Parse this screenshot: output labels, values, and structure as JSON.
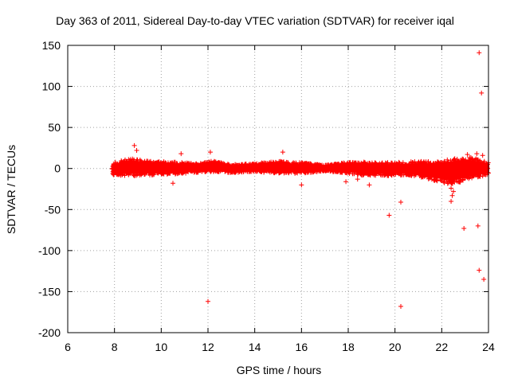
{
  "chart_data": {
    "type": "scatter",
    "title": "Day 363 of 2011, Sidereal Day-to-day VTEC variation (SDTVAR) for receiver iqal",
    "xlabel": "GPS time / hours",
    "ylabel": "SDTVAR / TECUs",
    "xlim": [
      6,
      24
    ],
    "ylim": [
      -200,
      150
    ],
    "xticks": [
      6,
      8,
      10,
      12,
      14,
      16,
      18,
      20,
      22,
      24
    ],
    "yticks": [
      -200,
      -150,
      -100,
      -50,
      0,
      50,
      100,
      150
    ],
    "grid": true,
    "marker": "+",
    "color": "#ff0000",
    "dense_band": {
      "description": "dense band of points around zero",
      "x_start": 7.9,
      "x_end": 24.0,
      "envelope": [
        {
          "x": 7.9,
          "low": -8,
          "high": 8
        },
        {
          "x": 8.8,
          "low": -9,
          "high": 12
        },
        {
          "x": 9.5,
          "low": -8,
          "high": 9
        },
        {
          "x": 10.5,
          "low": -7,
          "high": 8
        },
        {
          "x": 11.5,
          "low": -5,
          "high": 6
        },
        {
          "x": 12.2,
          "low": -4,
          "high": 9
        },
        {
          "x": 13.0,
          "low": -5,
          "high": 5
        },
        {
          "x": 14.0,
          "low": -4,
          "high": 6
        },
        {
          "x": 15.0,
          "low": -6,
          "high": 9
        },
        {
          "x": 16.0,
          "low": -6,
          "high": 7
        },
        {
          "x": 17.0,
          "low": -3,
          "high": 4
        },
        {
          "x": 17.8,
          "low": -5,
          "high": 7
        },
        {
          "x": 18.5,
          "low": -8,
          "high": 8
        },
        {
          "x": 19.5,
          "low": -9,
          "high": 7
        },
        {
          "x": 20.5,
          "low": -8,
          "high": 8
        },
        {
          "x": 21.3,
          "low": -12,
          "high": 9
        },
        {
          "x": 21.8,
          "low": -16,
          "high": 8
        },
        {
          "x": 22.5,
          "low": -20,
          "high": 12
        },
        {
          "x": 23.2,
          "low": -12,
          "high": 14
        },
        {
          "x": 24.0,
          "low": -8,
          "high": 8
        }
      ]
    },
    "points": [
      {
        "x": 8.85,
        "y": 28
      },
      {
        "x": 8.95,
        "y": 22
      },
      {
        "x": 10.85,
        "y": 18
      },
      {
        "x": 10.5,
        "y": -18
      },
      {
        "x": 12.1,
        "y": 20
      },
      {
        "x": 15.2,
        "y": 20
      },
      {
        "x": 16.0,
        "y": -20
      },
      {
        "x": 17.9,
        "y": -16
      },
      {
        "x": 18.9,
        "y": -20
      },
      {
        "x": 18.4,
        "y": -13
      },
      {
        "x": 12.0,
        "y": -162
      },
      {
        "x": 19.75,
        "y": -57
      },
      {
        "x": 20.25,
        "y": -41
      },
      {
        "x": 20.25,
        "y": -168
      },
      {
        "x": 22.4,
        "y": -40
      },
      {
        "x": 22.45,
        "y": -33
      },
      {
        "x": 22.5,
        "y": -28
      },
      {
        "x": 22.4,
        "y": -24
      },
      {
        "x": 22.95,
        "y": -73
      },
      {
        "x": 23.55,
        "y": -70
      },
      {
        "x": 23.6,
        "y": -124
      },
      {
        "x": 23.8,
        "y": -135
      },
      {
        "x": 23.6,
        "y": 141
      },
      {
        "x": 23.7,
        "y": 92
      },
      {
        "x": 23.1,
        "y": 17
      },
      {
        "x": 23.5,
        "y": 18
      },
      {
        "x": 23.75,
        "y": 16
      }
    ]
  }
}
